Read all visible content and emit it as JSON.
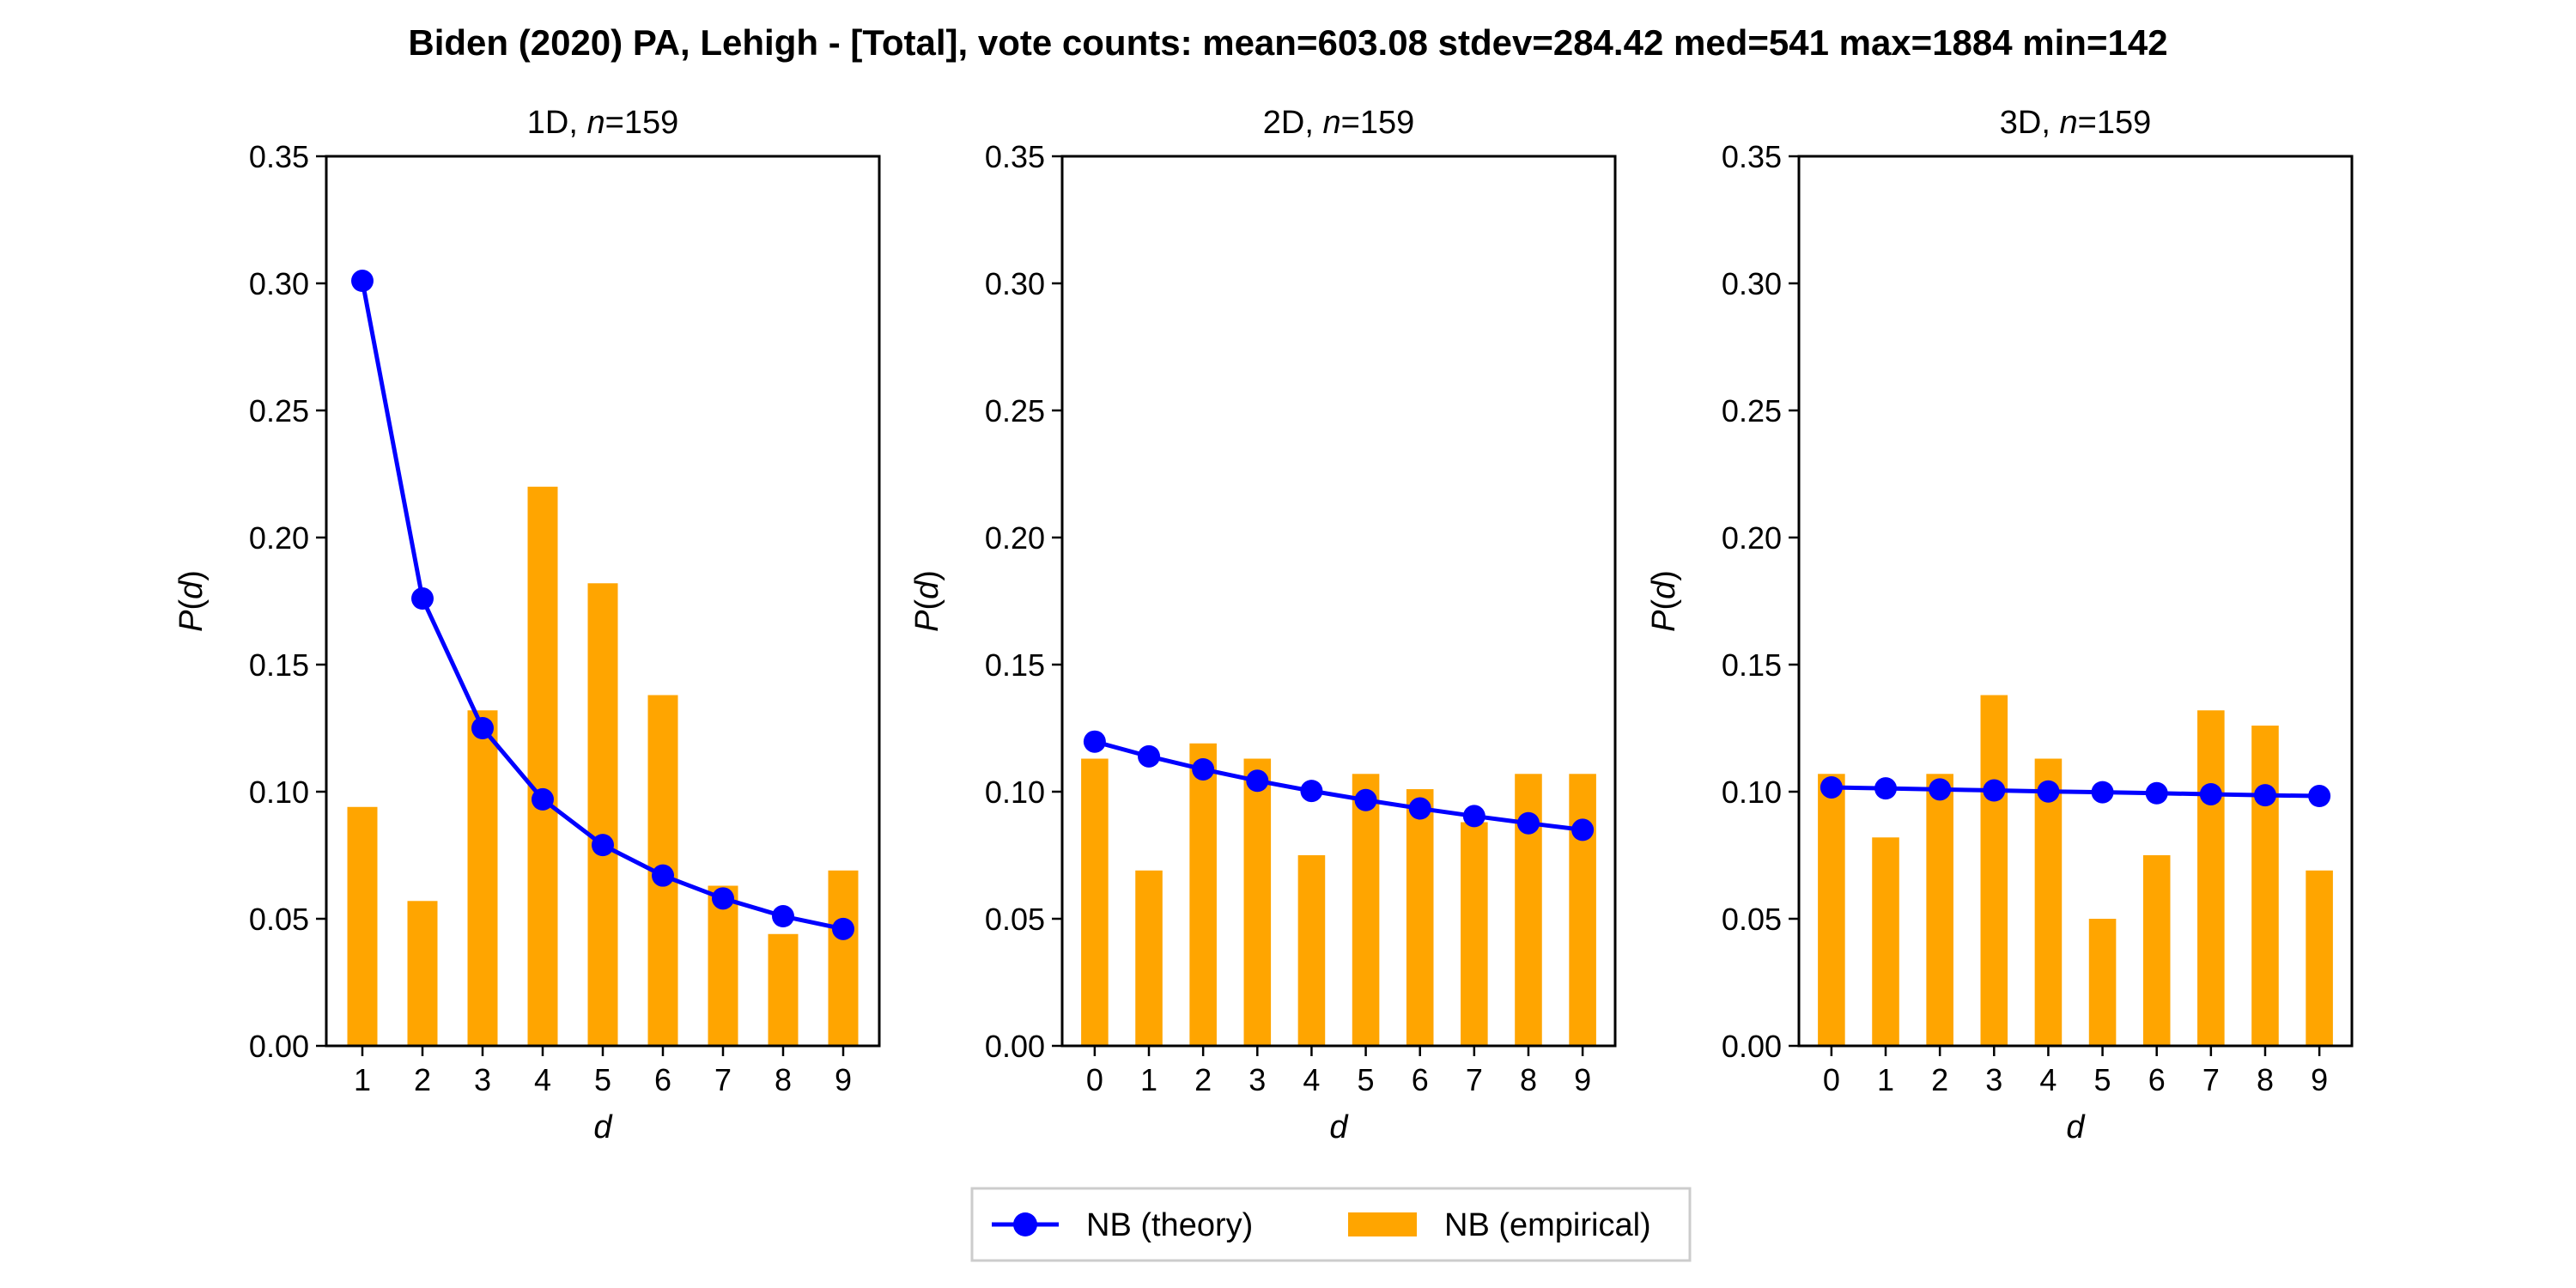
{
  "chart_data": {
    "type": "bar",
    "title": "Biden (2020) PA, Lehigh - [Total], vote counts: mean=603.08 stdev=284.42 med=541 max=1884 min=142",
    "legend": {
      "placement": "bottom-center",
      "theory_label": "NB (theory)",
      "empirical_label": "NB (empirical)"
    },
    "colors": {
      "theory": "#0000ff",
      "empirical": "#ffa500"
    },
    "panels": [
      {
        "name": "1D",
        "title_prefix": "1D, ",
        "title_n_var": "n",
        "title_n_value": "=159",
        "xlabel": "d",
        "ylabel_fn": "P",
        "ylabel_arg": "d",
        "ylim": [
          0,
          0.35
        ],
        "yticks": [
          "0.00",
          "0.05",
          "0.10",
          "0.15",
          "0.20",
          "0.25",
          "0.30",
          "0.35"
        ],
        "categories": [
          "1",
          "2",
          "3",
          "4",
          "5",
          "6",
          "7",
          "8",
          "9"
        ],
        "empirical": [
          0.094,
          0.057,
          0.132,
          0.22,
          0.182,
          0.138,
          0.063,
          0.044,
          0.069
        ],
        "theory": [
          0.301,
          0.176,
          0.125,
          0.097,
          0.079,
          0.067,
          0.058,
          0.051,
          0.046
        ]
      },
      {
        "name": "2D",
        "title_prefix": "2D, ",
        "title_n_var": "n",
        "title_n_value": "=159",
        "xlabel": "d",
        "ylabel_fn": "P",
        "ylabel_arg": "d",
        "ylim": [
          0,
          0.35
        ],
        "yticks": [
          "0.00",
          "0.05",
          "0.10",
          "0.15",
          "0.20",
          "0.25",
          "0.30",
          "0.35"
        ],
        "categories": [
          "0",
          "1",
          "2",
          "3",
          "4",
          "5",
          "6",
          "7",
          "8",
          "9"
        ],
        "empirical": [
          0.113,
          0.069,
          0.119,
          0.113,
          0.075,
          0.107,
          0.101,
          0.088,
          0.107,
          0.107
        ],
        "theory": [
          0.1197,
          0.1139,
          0.1088,
          0.1043,
          0.1003,
          0.0967,
          0.0934,
          0.0904,
          0.0876,
          0.085
        ]
      },
      {
        "name": "3D",
        "title_prefix": "3D, ",
        "title_n_var": "n",
        "title_n_value": "=159",
        "xlabel": "d",
        "ylabel_fn": "P",
        "ylabel_arg": "d",
        "ylim": [
          0,
          0.35
        ],
        "yticks": [
          "0.00",
          "0.05",
          "0.10",
          "0.15",
          "0.20",
          "0.25",
          "0.30",
          "0.35"
        ],
        "categories": [
          "0",
          "1",
          "2",
          "3",
          "4",
          "5",
          "6",
          "7",
          "8",
          "9"
        ],
        "empirical": [
          0.107,
          0.082,
          0.107,
          0.138,
          0.113,
          0.05,
          0.075,
          0.132,
          0.126,
          0.069
        ],
        "theory": [
          0.1017,
          0.1013,
          0.1009,
          0.1005,
          0.1001,
          0.0998,
          0.0994,
          0.099,
          0.0986,
          0.0983
        ]
      }
    ]
  }
}
